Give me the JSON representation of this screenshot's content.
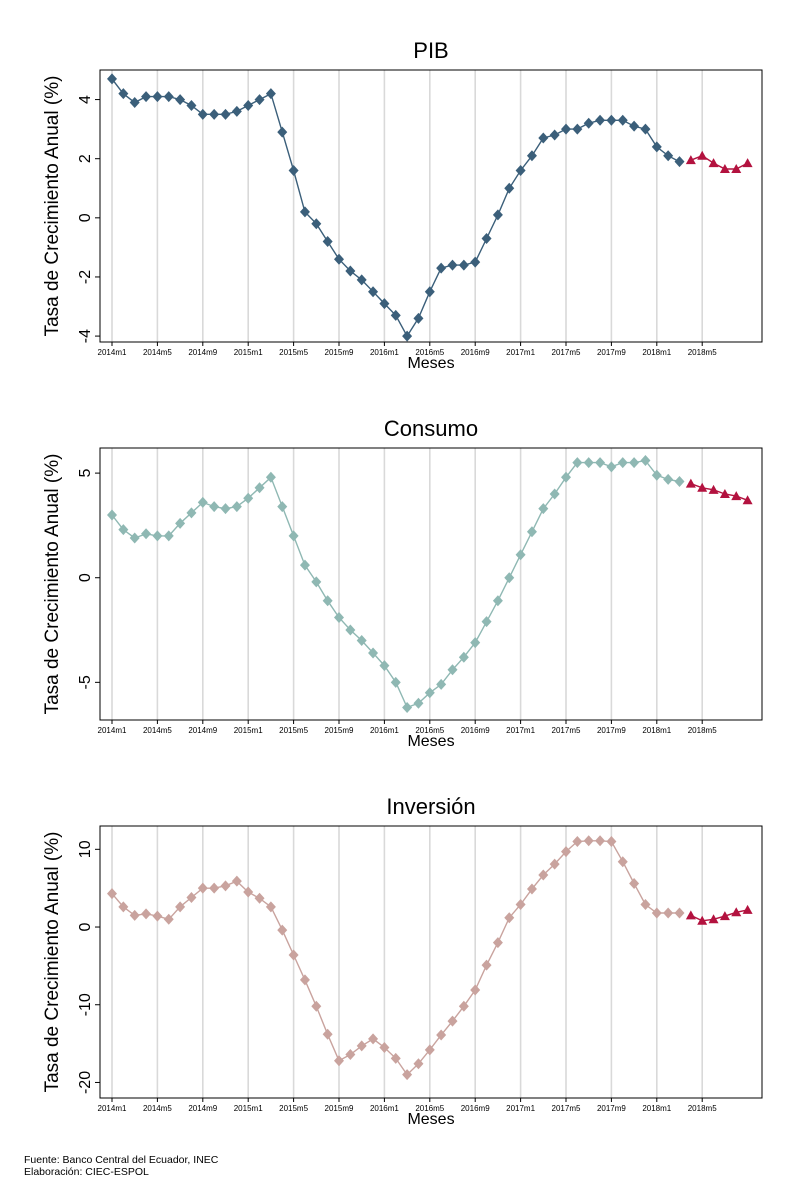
{
  "footer": {
    "source": "Fuente: Banco Central del Ecuador, INEC",
    "author": "Elaboración: CIEC-ESPOL"
  },
  "colors": {
    "forecast": "#b3123f",
    "gridline": "#d9d9d9"
  },
  "chart_data": [
    {
      "type": "line",
      "title": "PIB",
      "xlabel": "Meses",
      "ylabel": "Tasa de Crecimiento Anual (%)",
      "x_tick_labels": [
        "2014m1",
        "2014m5",
        "2014m9",
        "2015m1",
        "2015m5",
        "2015m9",
        "2016m1",
        "2016m5",
        "2016m9",
        "2017m1",
        "2017m5",
        "2017m9",
        "2018m1",
        "2018m5"
      ],
      "yticks": [
        -4,
        -2,
        0,
        2,
        4
      ],
      "ylim": [
        -4.2,
        5.0
      ],
      "series": [
        {
          "color": "#3b5f7a",
          "marker": "diamond",
          "x": [
            "2014m1",
            "2014m2",
            "2014m3",
            "2014m4",
            "2014m5",
            "2014m6",
            "2014m7",
            "2014m8",
            "2014m9",
            "2014m10",
            "2014m11",
            "2014m12",
            "2015m1",
            "2015m2",
            "2015m3",
            "2015m4",
            "2015m5",
            "2015m6",
            "2015m7",
            "2015m8",
            "2015m9",
            "2015m10",
            "2015m11",
            "2015m12",
            "2016m1",
            "2016m2",
            "2016m3",
            "2016m4",
            "2016m5",
            "2016m6",
            "2016m7",
            "2016m8",
            "2016m9",
            "2016m10",
            "2016m11",
            "2016m12",
            "2017m1",
            "2017m2",
            "2017m3",
            "2017m4",
            "2017m5",
            "2017m6",
            "2017m7",
            "2017m8",
            "2017m9",
            "2017m10",
            "2017m11",
            "2017m12",
            "2018m1",
            "2018m2",
            "2018m3"
          ],
          "values": [
            4.7,
            4.2,
            3.9,
            4.1,
            4.1,
            4.1,
            4.0,
            3.8,
            3.5,
            3.5,
            3.5,
            3.6,
            3.8,
            4.0,
            4.2,
            2.9,
            1.6,
            0.2,
            -0.2,
            -0.8,
            -1.4,
            -1.8,
            -2.1,
            -2.5,
            -2.9,
            -3.3,
            -4.0,
            -3.4,
            -2.5,
            -1.7,
            -1.6,
            -1.6,
            -1.5,
            -0.7,
            0.1,
            1.0,
            1.6,
            2.1,
            2.7,
            2.8,
            3.0,
            3.0,
            3.2,
            3.3,
            3.3,
            3.3,
            3.1,
            3.0,
            2.4,
            2.1,
            1.9
          ]
        },
        {
          "color": "#b3123f",
          "marker": "triangle",
          "x": [
            "2018m4",
            "2018m5",
            "2018m6",
            "2018m7",
            "2018m8",
            "2018m9"
          ],
          "values": [
            1.95,
            2.1,
            1.85,
            1.65,
            1.65,
            1.85
          ]
        }
      ]
    },
    {
      "type": "line",
      "title": "Consumo",
      "xlabel": "Meses",
      "ylabel": "Tasa de Crecimiento Anual (%)",
      "x_tick_labels": [
        "2014m1",
        "2014m5",
        "2014m9",
        "2015m1",
        "2015m5",
        "2015m9",
        "2016m1",
        "2016m5",
        "2016m9",
        "2017m1",
        "2017m5",
        "2017m9",
        "2018m1",
        "2018m5"
      ],
      "yticks": [
        -5,
        0,
        5
      ],
      "ylim": [
        -6.8,
        6.2
      ],
      "series": [
        {
          "color": "#8fb8b3",
          "marker": "diamond",
          "x": [
            "2014m1",
            "2014m2",
            "2014m3",
            "2014m4",
            "2014m5",
            "2014m6",
            "2014m7",
            "2014m8",
            "2014m9",
            "2014m10",
            "2014m11",
            "2014m12",
            "2015m1",
            "2015m2",
            "2015m3",
            "2015m4",
            "2015m5",
            "2015m6",
            "2015m7",
            "2015m8",
            "2015m9",
            "2015m10",
            "2015m11",
            "2015m12",
            "2016m1",
            "2016m2",
            "2016m3",
            "2016m4",
            "2016m5",
            "2016m6",
            "2016m7",
            "2016m8",
            "2016m9",
            "2016m10",
            "2016m11",
            "2016m12",
            "2017m1",
            "2017m2",
            "2017m3",
            "2017m4",
            "2017m5",
            "2017m6",
            "2017m7",
            "2017m8",
            "2017m9",
            "2017m10",
            "2017m11",
            "2017m12",
            "2018m1",
            "2018m2",
            "2018m3"
          ],
          "values": [
            3.0,
            2.3,
            1.9,
            2.1,
            2.0,
            2.0,
            2.6,
            3.1,
            3.6,
            3.4,
            3.3,
            3.4,
            3.8,
            4.3,
            4.8,
            3.4,
            2.0,
            0.6,
            -0.2,
            -1.1,
            -1.9,
            -2.5,
            -3.0,
            -3.6,
            -4.2,
            -5.0,
            -6.2,
            -6.0,
            -5.5,
            -5.1,
            -4.4,
            -3.8,
            -3.1,
            -2.1,
            -1.1,
            0.0,
            1.1,
            2.2,
            3.3,
            4.0,
            4.8,
            5.5,
            5.5,
            5.5,
            5.3,
            5.5,
            5.5,
            5.6,
            4.9,
            4.7,
            4.6
          ]
        },
        {
          "color": "#b3123f",
          "marker": "triangle",
          "x": [
            "2018m4",
            "2018m5",
            "2018m6",
            "2018m7",
            "2018m8",
            "2018m9"
          ],
          "values": [
            4.5,
            4.3,
            4.2,
            4.0,
            3.9,
            3.7
          ]
        }
      ]
    },
    {
      "type": "line",
      "title": "Inversión",
      "xlabel": "Meses",
      "ylabel": "Tasa de Crecimiento Anual (%)",
      "x_tick_labels": [
        "2014m1",
        "2014m5",
        "2014m9",
        "2015m1",
        "2015m5",
        "2015m9",
        "2016m1",
        "2016m5",
        "2016m9",
        "2017m1",
        "2017m5",
        "2017m9",
        "2018m1",
        "2018m5"
      ],
      "yticks": [
        -20,
        -10,
        0,
        10
      ],
      "ylim": [
        -22,
        13
      ],
      "series": [
        {
          "color": "#c9a39e",
          "marker": "diamond",
          "x": [
            "2014m1",
            "2014m2",
            "2014m3",
            "2014m4",
            "2014m5",
            "2014m6",
            "2014m7",
            "2014m8",
            "2014m9",
            "2014m10",
            "2014m11",
            "2014m12",
            "2015m1",
            "2015m2",
            "2015m3",
            "2015m4",
            "2015m5",
            "2015m6",
            "2015m7",
            "2015m8",
            "2015m9",
            "2015m10",
            "2015m11",
            "2015m12",
            "2016m1",
            "2016m2",
            "2016m3",
            "2016m4",
            "2016m5",
            "2016m6",
            "2016m7",
            "2016m8",
            "2016m9",
            "2016m10",
            "2016m11",
            "2016m12",
            "2017m1",
            "2017m2",
            "2017m3",
            "2017m4",
            "2017m5",
            "2017m6",
            "2017m7",
            "2017m8",
            "2017m9",
            "2017m10",
            "2017m11",
            "2017m12",
            "2018m1",
            "2018m2",
            "2018m3"
          ],
          "values": [
            4.3,
            2.6,
            1.5,
            1.7,
            1.4,
            1.0,
            2.6,
            3.8,
            5.0,
            5.0,
            5.3,
            5.9,
            4.5,
            3.7,
            2.6,
            -0.4,
            -3.6,
            -6.8,
            -10.2,
            -13.8,
            -17.2,
            -16.4,
            -15.3,
            -14.4,
            -15.5,
            -16.9,
            -19.0,
            -17.6,
            -15.8,
            -13.9,
            -12.1,
            -10.2,
            -8.1,
            -4.9,
            -2.0,
            1.2,
            2.9,
            4.9,
            6.7,
            8.1,
            9.7,
            11.0,
            11.1,
            11.1,
            11.0,
            8.4,
            5.6,
            2.9,
            1.8,
            1.8,
            1.8
          ]
        },
        {
          "color": "#b3123f",
          "marker": "triangle",
          "x": [
            "2018m4",
            "2018m5",
            "2018m6",
            "2018m7",
            "2018m8",
            "2018m9"
          ],
          "values": [
            1.5,
            0.8,
            1.0,
            1.4,
            1.9,
            2.2
          ]
        }
      ]
    }
  ]
}
